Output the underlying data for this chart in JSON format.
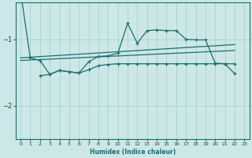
{
  "xlabel": "Humidex (Indice chaleur)",
  "bg_color": "#cce8e6",
  "grid_color": "#aad0ce",
  "line_color": "#1a6e6e",
  "xlim": [
    -0.5,
    23.5
  ],
  "ylim": [
    -2.5,
    -0.45
  ],
  "yticks": [
    -2,
    -1
  ],
  "xticks": [
    0,
    1,
    2,
    3,
    4,
    5,
    6,
    7,
    8,
    9,
    10,
    11,
    12,
    13,
    14,
    15,
    16,
    17,
    18,
    19,
    20,
    21,
    22,
    23
  ],
  "main_x": [
    0,
    1,
    2,
    3,
    4,
    5,
    6,
    7,
    8,
    9,
    10,
    11,
    12,
    13,
    14,
    15,
    16,
    17,
    18,
    19,
    20,
    21,
    22
  ],
  "main_y": [
    -0.28,
    -1.28,
    -1.32,
    -1.53,
    -1.47,
    -1.49,
    -1.51,
    -1.34,
    -1.26,
    -1.25,
    -1.21,
    -0.76,
    -1.06,
    -0.87,
    -0.86,
    -0.87,
    -0.87,
    -1.0,
    -1.01,
    -1.01,
    -1.36,
    -1.37,
    -1.37
  ],
  "trend1_x": [
    0,
    22
  ],
  "trend1_y": [
    -1.28,
    -1.08
  ],
  "trend2_x": [
    0,
    22
  ],
  "trend2_y": [
    -1.32,
    -1.17
  ],
  "lower_x": [
    2,
    3,
    4,
    5,
    6,
    7,
    8,
    9,
    10,
    11,
    12,
    13,
    14,
    15,
    16,
    17,
    18,
    19,
    20,
    21,
    22
  ],
  "lower_y": [
    -1.55,
    -1.53,
    -1.47,
    -1.49,
    -1.51,
    -1.46,
    -1.4,
    -1.38,
    -1.37,
    -1.37,
    -1.37,
    -1.37,
    -1.37,
    -1.37,
    -1.37,
    -1.37,
    -1.37,
    -1.37,
    -1.37,
    -1.37,
    -1.52
  ]
}
